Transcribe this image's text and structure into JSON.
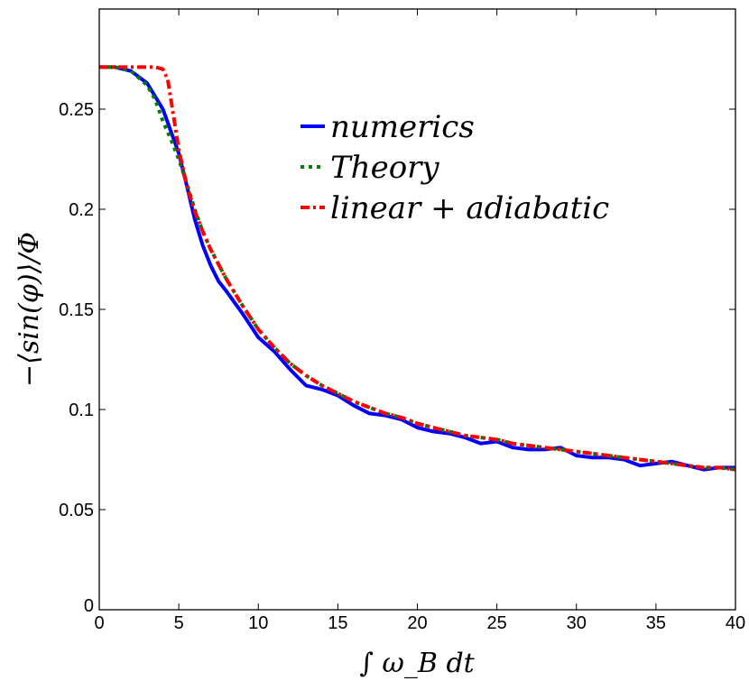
{
  "chart_data": {
    "type": "line",
    "xlabel": "∫ ω_B dt",
    "ylabel": "−⟨sin(φ)⟩/Φ",
    "xlim": [
      0,
      40
    ],
    "ylim": [
      0,
      0.3
    ],
    "xticks": [
      "0",
      "5",
      "10",
      "15",
      "20",
      "25",
      "30",
      "35",
      "40"
    ],
    "yticks": [
      "0",
      "0.05",
      "0.1",
      "0.15",
      "0.2",
      "0.25"
    ],
    "grid": false,
    "legend_position": "top-right",
    "series": [
      {
        "name": "numerics",
        "color": "#0000ff",
        "style": "solid",
        "x": [
          0,
          1,
          2,
          3,
          4,
          5,
          5.5,
          6,
          6.5,
          7,
          7.5,
          8,
          9,
          10,
          11,
          12,
          13,
          14,
          15,
          16,
          17,
          18,
          19,
          20,
          21,
          22,
          23,
          24,
          25,
          26,
          27,
          28,
          29,
          30,
          31,
          32,
          33,
          34,
          35,
          36,
          37,
          38,
          39,
          40
        ],
        "y": [
          0.271,
          0.271,
          0.269,
          0.263,
          0.25,
          0.228,
          0.212,
          0.195,
          0.182,
          0.172,
          0.164,
          0.159,
          0.148,
          0.136,
          0.129,
          0.12,
          0.112,
          0.11,
          0.107,
          0.102,
          0.098,
          0.097,
          0.095,
          0.091,
          0.089,
          0.088,
          0.086,
          0.083,
          0.084,
          0.081,
          0.08,
          0.08,
          0.081,
          0.077,
          0.076,
          0.076,
          0.075,
          0.072,
          0.073,
          0.074,
          0.072,
          0.07,
          0.071,
          0.071
        ]
      },
      {
        "name": "Theory",
        "color": "#008000",
        "style": "dotted",
        "x": [
          0,
          1,
          2,
          3,
          3.5,
          4,
          4.5,
          5,
          5.5,
          6,
          6.5,
          7,
          8,
          9,
          10,
          11,
          12,
          13,
          14,
          15,
          16,
          17,
          18,
          19,
          20,
          21,
          22,
          23,
          24,
          25,
          26,
          27,
          28,
          29,
          30,
          31,
          32,
          33,
          34,
          35,
          36,
          37,
          38,
          39,
          40
        ],
        "y": [
          0.271,
          0.271,
          0.269,
          0.262,
          0.255,
          0.244,
          0.235,
          0.225,
          0.213,
          0.2,
          0.189,
          0.18,
          0.165,
          0.152,
          0.14,
          0.131,
          0.123,
          0.117,
          0.112,
          0.108,
          0.104,
          0.101,
          0.098,
          0.096,
          0.093,
          0.091,
          0.089,
          0.087,
          0.086,
          0.085,
          0.083,
          0.082,
          0.081,
          0.08,
          0.079,
          0.078,
          0.077,
          0.076,
          0.075,
          0.074,
          0.073,
          0.072,
          0.071,
          0.071,
          0.07
        ]
      },
      {
        "name": "linear + adiabatic",
        "color": "#ff0000",
        "style": "dashdot",
        "x": [
          0,
          1,
          2,
          3,
          3.5,
          4,
          4.3,
          4.6,
          5,
          5.5,
          6,
          6.5,
          7,
          8,
          9,
          10,
          11,
          12,
          13,
          14,
          15,
          16,
          17,
          18,
          19,
          20,
          21,
          22,
          23,
          24,
          25,
          26,
          27,
          28,
          29,
          30,
          31,
          32,
          33,
          34,
          35,
          36,
          37,
          38,
          39,
          40
        ],
        "y": [
          0.271,
          0.271,
          0.271,
          0.271,
          0.271,
          0.27,
          0.265,
          0.25,
          0.23,
          0.212,
          0.199,
          0.189,
          0.18,
          0.165,
          0.152,
          0.14,
          0.131,
          0.123,
          0.117,
          0.112,
          0.108,
          0.104,
          0.101,
          0.098,
          0.096,
          0.093,
          0.091,
          0.089,
          0.087,
          0.086,
          0.085,
          0.083,
          0.082,
          0.081,
          0.08,
          0.079,
          0.078,
          0.077,
          0.076,
          0.075,
          0.074,
          0.073,
          0.072,
          0.071,
          0.071,
          0.07
        ]
      }
    ]
  }
}
